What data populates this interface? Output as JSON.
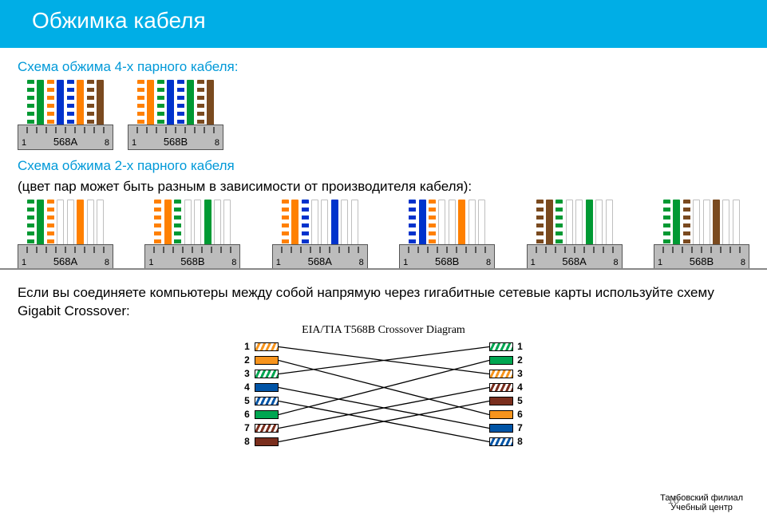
{
  "colors": {
    "header_bg": "#00aee6",
    "header_text": "#ffffff",
    "accent": "#0099d8",
    "text": "#000000",
    "jack_fill": "#bcbcbc",
    "wire": {
      "green": "#009933",
      "orange": "#ff8000",
      "blue": "#0033cc",
      "brown": "#7a4a1f",
      "white": "#ffffff"
    },
    "xover": {
      "green": "#00a651",
      "orange": "#f7941d",
      "blue": "#0054a6",
      "brown": "#7a2e1d"
    }
  },
  "header_title": "Обжимка кабеля",
  "section1_title": "Схема обжима 4-х парного кабеля:",
  "section2_title": "Схема обжима 2-х парного кабеля",
  "section2_sub": "(цвет пар может быть разным в зависимости от производителя кабеля):",
  "paragraph1": "Если вы соединяете компьютеры между собой напрямую через гигабитные сетевые карты используйте схему Gigabit Crossover:",
  "xover_title": "EIA/TIA T568B Crossover Diagram",
  "footer_line1": "Тамбовский филиал",
  "footer_line2": "Учебный центр",
  "page_number": "10",
  "pin_left": "1",
  "pin_right": "8",
  "four_pair": [
    {
      "label": "568A",
      "wires": [
        {
          "color": "green",
          "striped": true
        },
        {
          "color": "green"
        },
        {
          "color": "orange",
          "striped": true
        },
        {
          "color": "blue"
        },
        {
          "color": "blue",
          "striped": true
        },
        {
          "color": "orange"
        },
        {
          "color": "brown",
          "striped": true
        },
        {
          "color": "brown"
        }
      ]
    },
    {
      "label": "568B",
      "wires": [
        {
          "color": "orange",
          "striped": true
        },
        {
          "color": "orange"
        },
        {
          "color": "green",
          "striped": true
        },
        {
          "color": "blue"
        },
        {
          "color": "blue",
          "striped": true
        },
        {
          "color": "green"
        },
        {
          "color": "brown",
          "striped": true
        },
        {
          "color": "brown"
        }
      ]
    }
  ],
  "two_pair": [
    {
      "label": "568A",
      "wires": [
        {
          "color": "green",
          "striped": true
        },
        {
          "color": "green"
        },
        {
          "color": "orange",
          "striped": true
        },
        {
          "empty": true
        },
        {
          "empty": true
        },
        {
          "color": "orange"
        },
        {
          "empty": true
        },
        {
          "empty": true
        }
      ]
    },
    {
      "label": "568B",
      "wires": [
        {
          "color": "orange",
          "striped": true
        },
        {
          "color": "orange"
        },
        {
          "color": "green",
          "striped": true
        },
        {
          "empty": true
        },
        {
          "empty": true
        },
        {
          "color": "green"
        },
        {
          "empty": true
        },
        {
          "empty": true
        }
      ]
    },
    {
      "label": "568A",
      "wires": [
        {
          "color": "orange",
          "striped": true
        },
        {
          "color": "orange"
        },
        {
          "color": "blue",
          "striped": true
        },
        {
          "empty": true
        },
        {
          "empty": true
        },
        {
          "color": "blue"
        },
        {
          "empty": true
        },
        {
          "empty": true
        }
      ]
    },
    {
      "label": "568B",
      "wires": [
        {
          "color": "blue",
          "striped": true
        },
        {
          "color": "blue"
        },
        {
          "color": "orange",
          "striped": true
        },
        {
          "empty": true
        },
        {
          "empty": true
        },
        {
          "color": "orange"
        },
        {
          "empty": true
        },
        {
          "empty": true
        }
      ]
    },
    {
      "label": "568A",
      "wires": [
        {
          "color": "brown",
          "striped": true
        },
        {
          "color": "brown"
        },
        {
          "color": "green",
          "striped": true
        },
        {
          "empty": true
        },
        {
          "empty": true
        },
        {
          "color": "green"
        },
        {
          "empty": true
        },
        {
          "empty": true
        }
      ]
    },
    {
      "label": "568B",
      "wires": [
        {
          "color": "green",
          "striped": true
        },
        {
          "color": "green"
        },
        {
          "color": "brown",
          "striped": true
        },
        {
          "empty": true
        },
        {
          "empty": true
        },
        {
          "color": "brown"
        },
        {
          "empty": true
        },
        {
          "empty": true
        }
      ]
    }
  ],
  "crossover": {
    "left": [
      {
        "n": "1",
        "color": "orange",
        "striped": true
      },
      {
        "n": "2",
        "color": "orange"
      },
      {
        "n": "3",
        "color": "green",
        "striped": true
      },
      {
        "n": "4",
        "color": "blue"
      },
      {
        "n": "5",
        "color": "blue",
        "striped": true
      },
      {
        "n": "6",
        "color": "green"
      },
      {
        "n": "7",
        "color": "brown",
        "striped": true
      },
      {
        "n": "8",
        "color": "brown"
      }
    ],
    "right": [
      {
        "n": "1",
        "color": "green",
        "striped": true
      },
      {
        "n": "2",
        "color": "green"
      },
      {
        "n": "3",
        "color": "orange",
        "striped": true
      },
      {
        "n": "4",
        "color": "brown",
        "striped": true
      },
      {
        "n": "5",
        "color": "brown"
      },
      {
        "n": "6",
        "color": "orange"
      },
      {
        "n": "7",
        "color": "blue"
      },
      {
        "n": "8",
        "color": "blue",
        "striped": true
      }
    ],
    "map": [
      [
        1,
        3
      ],
      [
        2,
        6
      ],
      [
        3,
        1
      ],
      [
        4,
        7
      ],
      [
        5,
        8
      ],
      [
        6,
        2
      ],
      [
        7,
        4
      ],
      [
        8,
        5
      ]
    ]
  }
}
